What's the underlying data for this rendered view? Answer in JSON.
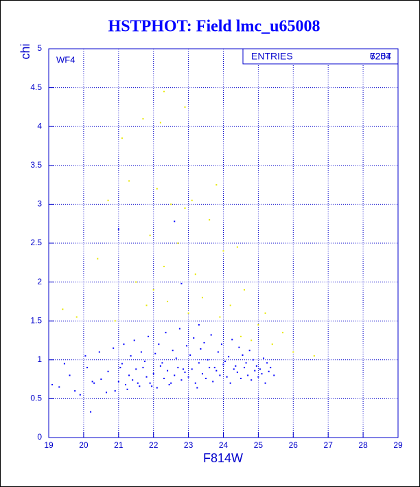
{
  "chart_data": {
    "type": "scatter",
    "title": "HSTPHOT: Field lmc_u65008",
    "xlabel": "F814W",
    "ylabel": "chi",
    "panel_label": "WF4",
    "stats_label": "ENTRIES",
    "entries": [
      7257,
      6204
    ],
    "xlim": [
      19,
      29
    ],
    "ylim": [
      0,
      5
    ],
    "xticks": [
      19,
      20,
      21,
      22,
      23,
      24,
      25,
      26,
      27,
      28,
      29
    ],
    "yticks": [
      0,
      0.5,
      1,
      1.5,
      2,
      2.5,
      3,
      3.5,
      4,
      4.5,
      5
    ],
    "grid": true,
    "series": [
      {
        "color": "#0000ff",
        "x": [
          19.3,
          19.6,
          19.9,
          20.1,
          20.3,
          20.5,
          20.7,
          20.9,
          21.0,
          21.1,
          21.2,
          21.3,
          21.4,
          21.5,
          21.6,
          21.7,
          21.8,
          21.9,
          22.0,
          22.1,
          22.2,
          22.3,
          22.4,
          22.5,
          22.6,
          22.7,
          22.8,
          22.9,
          23.0,
          23.1,
          23.2,
          23.3,
          23.4,
          23.5,
          23.6,
          23.7,
          23.8,
          23.9,
          24.0,
          24.1,
          24.2,
          24.3,
          24.4,
          24.5,
          24.6,
          24.7,
          24.8,
          24.9,
          25.0,
          25.1,
          25.2,
          25.3,
          19.45,
          19.75,
          20.05,
          20.25,
          20.45,
          20.65,
          20.85,
          21.05,
          21.15,
          21.25,
          21.35,
          21.45,
          21.55,
          21.65,
          21.75,
          21.85,
          21.95,
          22.05,
          22.15,
          22.25,
          22.35,
          22.45,
          22.55,
          22.65,
          22.75,
          22.85,
          22.95,
          23.05,
          23.15,
          23.25,
          23.35,
          23.45,
          23.55,
          23.65,
          23.75,
          23.85,
          23.95,
          24.05,
          24.15,
          24.25,
          24.35,
          24.45,
          24.55,
          24.65,
          24.75,
          24.85,
          24.95,
          25.05,
          25.15,
          25.25,
          25.35,
          25.45,
          22.6,
          21.0,
          22.8,
          20.2,
          19.1,
          23.3
        ],
        "values": [
          0.65,
          0.8,
          0.55,
          0.9,
          0.7,
          0.75,
          0.85,
          0.6,
          0.72,
          0.95,
          0.68,
          0.8,
          0.74,
          0.88,
          0.66,
          0.9,
          0.78,
          0.7,
          0.82,
          0.64,
          0.92,
          0.76,
          0.86,
          0.7,
          0.8,
          0.9,
          0.74,
          0.84,
          0.78,
          0.88,
          0.7,
          0.96,
          0.82,
          0.76,
          0.9,
          0.72,
          0.86,
          0.8,
          0.94,
          0.78,
          0.7,
          0.88,
          0.84,
          0.76,
          0.9,
          0.8,
          0.74,
          0.86,
          0.78,
          0.82,
          0.7,
          0.85,
          0.95,
          0.6,
          1.05,
          0.72,
          1.1,
          0.58,
          1.15,
          0.9,
          1.2,
          0.62,
          1.05,
          1.25,
          0.7,
          1.1,
          0.98,
          1.3,
          0.66,
          1.08,
          1.2,
          0.96,
          1.35,
          0.68,
          1.12,
          1.02,
          1.4,
          0.88,
          1.18,
          1.06,
          1.28,
          0.64,
          1.14,
          1.22,
          1.0,
          1.32,
          0.9,
          1.1,
          1.2,
          0.98,
          1.04,
          1.26,
          0.92,
          1.16,
          1.06,
          0.96,
          1.12,
          1.0,
          0.92,
          0.88,
          1.02,
          0.96,
          0.9,
          0.8,
          2.78,
          2.68,
          1.98,
          0.33,
          0.68,
          1.45
        ]
      },
      {
        "color": "#e8e800",
        "x": [
          19.4,
          19.8,
          20.4,
          20.7,
          20.9,
          21.1,
          21.3,
          21.5,
          21.7,
          21.8,
          21.9,
          22.0,
          22.1,
          22.2,
          22.3,
          22.4,
          22.5,
          22.7,
          22.9,
          23.0,
          23.1,
          23.2,
          23.4,
          23.6,
          23.8,
          23.9,
          24.0,
          24.2,
          24.4,
          24.5,
          24.6,
          24.8,
          25.0,
          25.2,
          25.4,
          25.7,
          26.0,
          26.6,
          22.3,
          22.9
        ],
        "values": [
          1.65,
          1.55,
          2.3,
          3.05,
          1.5,
          3.85,
          3.3,
          2.0,
          4.1,
          1.7,
          2.6,
          1.9,
          3.2,
          4.05,
          2.2,
          1.75,
          3.0,
          2.5,
          4.25,
          1.6,
          3.05,
          2.1,
          1.8,
          2.8,
          3.25,
          1.55,
          2.4,
          1.7,
          2.45,
          1.3,
          1.9,
          1.25,
          1.45,
          1.6,
          1.2,
          1.35,
          1.1,
          1.05,
          4.45,
          2.95
        ]
      }
    ]
  }
}
